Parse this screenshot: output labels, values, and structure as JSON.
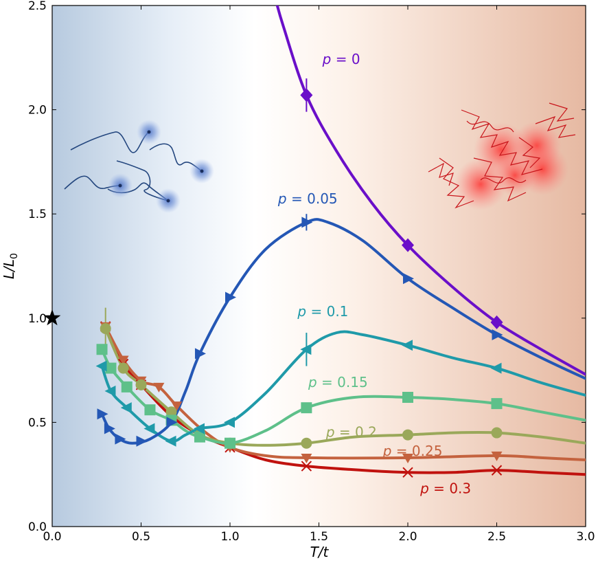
{
  "chart_data": {
    "type": "line",
    "xlabel": "T/t",
    "ylabel": "L/L0",
    "ylabel_main": "L/L",
    "ylabel_sub": "0",
    "xlim": [
      0,
      3
    ],
    "ylim": [
      0,
      2.5
    ],
    "xticks": [
      "0.0",
      "0.5",
      "1.0",
      "1.5",
      "2.0",
      "2.5",
      "3.0"
    ],
    "yticks": [
      "0.0",
      "0.5",
      "1.0",
      "1.5",
      "2.0",
      "2.5"
    ],
    "grid": false,
    "reference_point": {
      "x": 0.0,
      "y": 1.0,
      "marker": "star",
      "color": "#000000"
    },
    "background": {
      "cold_color": "#b7cadf",
      "hot_color": "#e6b9a2"
    },
    "series": [
      {
        "name": "p = 0",
        "label_italic": "p",
        "label_value": "0",
        "color": "#6a0fc9",
        "marker": "diamond",
        "label_at": [
          1.52,
          2.22
        ],
        "points": [
          [
            1.43,
            2.07
          ],
          [
            2.0,
            1.35
          ],
          [
            2.5,
            0.98
          ]
        ],
        "errorbars": [
          [
            1.43,
            2.07,
            0.08
          ]
        ],
        "curve": [
          [
            1.25,
            2.55
          ],
          [
            1.3,
            2.4
          ],
          [
            1.43,
            2.07
          ],
          [
            1.6,
            1.8
          ],
          [
            1.8,
            1.55
          ],
          [
            2.0,
            1.35
          ],
          [
            2.25,
            1.15
          ],
          [
            2.5,
            0.98
          ],
          [
            2.75,
            0.85
          ],
          [
            3.0,
            0.73
          ]
        ]
      },
      {
        "name": "p = 0.05",
        "label_italic": "p",
        "label_value": "0.05",
        "color": "#2457b5",
        "marker": "triangle-right",
        "label_at": [
          1.27,
          1.55
        ],
        "points": [
          [
            0.28,
            0.54
          ],
          [
            0.32,
            0.47
          ],
          [
            0.38,
            0.42
          ],
          [
            0.5,
            0.41
          ],
          [
            0.67,
            0.5
          ],
          [
            0.83,
            0.83
          ],
          [
            1.0,
            1.1
          ],
          [
            1.43,
            1.46
          ],
          [
            2.0,
            1.19
          ],
          [
            2.5,
            0.92
          ]
        ],
        "errorbars": [
          [
            1.43,
            1.46,
            0.04
          ]
        ],
        "curve": [
          [
            0.28,
            0.54
          ],
          [
            0.32,
            0.47
          ],
          [
            0.38,
            0.42
          ],
          [
            0.45,
            0.4
          ],
          [
            0.55,
            0.42
          ],
          [
            0.67,
            0.5
          ],
          [
            0.75,
            0.65
          ],
          [
            0.83,
            0.83
          ],
          [
            1.0,
            1.1
          ],
          [
            1.2,
            1.33
          ],
          [
            1.43,
            1.46
          ],
          [
            1.55,
            1.46
          ],
          [
            1.75,
            1.37
          ],
          [
            2.0,
            1.19
          ],
          [
            2.25,
            1.05
          ],
          [
            2.5,
            0.92
          ],
          [
            2.75,
            0.81
          ],
          [
            3.0,
            0.71
          ]
        ]
      },
      {
        "name": "p = 0.1",
        "label_italic": "p",
        "label_value": "0.1",
        "color": "#1f9aa9",
        "marker": "triangle-left",
        "label_at": [
          1.38,
          1.01
        ],
        "points": [
          [
            0.28,
            0.77
          ],
          [
            0.33,
            0.65
          ],
          [
            0.42,
            0.57
          ],
          [
            0.55,
            0.47
          ],
          [
            0.67,
            0.41
          ],
          [
            0.83,
            0.47
          ],
          [
            1.0,
            0.5
          ],
          [
            1.43,
            0.85
          ],
          [
            2.0,
            0.87
          ],
          [
            2.5,
            0.76
          ]
        ],
        "errorbars": [
          [
            1.43,
            0.85,
            0.08
          ]
        ],
        "curve": [
          [
            0.28,
            0.77
          ],
          [
            0.33,
            0.65
          ],
          [
            0.42,
            0.57
          ],
          [
            0.55,
            0.47
          ],
          [
            0.67,
            0.41
          ],
          [
            0.75,
            0.44
          ],
          [
            0.83,
            0.47
          ],
          [
            1.0,
            0.5
          ],
          [
            1.2,
            0.64
          ],
          [
            1.43,
            0.85
          ],
          [
            1.6,
            0.93
          ],
          [
            1.75,
            0.92
          ],
          [
            2.0,
            0.87
          ],
          [
            2.25,
            0.81
          ],
          [
            2.5,
            0.76
          ],
          [
            2.75,
            0.69
          ],
          [
            3.0,
            0.63
          ]
        ]
      },
      {
        "name": "p = 0.15",
        "label_italic": "p",
        "label_value": "0.15",
        "color": "#5ec08a",
        "marker": "square",
        "label_at": [
          1.44,
          0.67
        ],
        "points": [
          [
            0.28,
            0.85
          ],
          [
            0.33,
            0.76
          ],
          [
            0.42,
            0.67
          ],
          [
            0.55,
            0.56
          ],
          [
            0.67,
            0.51
          ],
          [
            0.83,
            0.43
          ],
          [
            1.0,
            0.4
          ],
          [
            1.43,
            0.57
          ],
          [
            2.0,
            0.62
          ],
          [
            2.5,
            0.59
          ]
        ],
        "errorbars": [],
        "curve": [
          [
            0.28,
            0.85
          ],
          [
            0.33,
            0.76
          ],
          [
            0.42,
            0.67
          ],
          [
            0.55,
            0.56
          ],
          [
            0.67,
            0.51
          ],
          [
            0.75,
            0.46
          ],
          [
            0.83,
            0.43
          ],
          [
            1.0,
            0.4
          ],
          [
            1.2,
            0.46
          ],
          [
            1.43,
            0.57
          ],
          [
            1.7,
            0.62
          ],
          [
            2.0,
            0.62
          ],
          [
            2.25,
            0.61
          ],
          [
            2.5,
            0.59
          ],
          [
            2.75,
            0.55
          ],
          [
            3.0,
            0.51
          ]
        ]
      },
      {
        "name": "p = 0.2",
        "label_italic": "p",
        "label_value": "0.2",
        "color": "#9aa85a",
        "marker": "circle",
        "label_at": [
          1.54,
          0.43
        ],
        "points": [
          [
            0.3,
            0.95
          ],
          [
            0.4,
            0.76
          ],
          [
            0.5,
            0.68
          ],
          [
            0.67,
            0.55
          ],
          [
            0.83,
            0.44
          ],
          [
            1.0,
            0.4
          ],
          [
            1.43,
            0.4
          ],
          [
            2.0,
            0.44
          ],
          [
            2.5,
            0.45
          ]
        ],
        "errorbars": [
          [
            0.3,
            0.95,
            0.1
          ]
        ],
        "curve": [
          [
            0.3,
            0.95
          ],
          [
            0.4,
            0.76
          ],
          [
            0.5,
            0.68
          ],
          [
            0.67,
            0.55
          ],
          [
            0.83,
            0.44
          ],
          [
            1.0,
            0.4
          ],
          [
            1.2,
            0.39
          ],
          [
            1.43,
            0.4
          ],
          [
            1.7,
            0.43
          ],
          [
            2.0,
            0.44
          ],
          [
            2.25,
            0.45
          ],
          [
            2.5,
            0.45
          ],
          [
            2.75,
            0.43
          ],
          [
            3.0,
            0.4
          ]
        ]
      },
      {
        "name": "p = 0.25",
        "label_italic": "p",
        "label_value": "0.25",
        "color": "#c4623e",
        "marker": "triangle-down",
        "label_at": [
          1.86,
          0.34
        ],
        "points": [
          [
            0.3,
            0.96
          ],
          [
            0.4,
            0.8
          ],
          [
            0.5,
            0.7
          ],
          [
            0.6,
            0.67
          ],
          [
            0.7,
            0.58
          ],
          [
            1.0,
            0.38
          ],
          [
            1.43,
            0.33
          ],
          [
            2.0,
            0.33
          ],
          [
            2.5,
            0.34
          ]
        ],
        "errorbars": [],
        "curve": [
          [
            0.3,
            0.96
          ],
          [
            0.4,
            0.8
          ],
          [
            0.5,
            0.7
          ],
          [
            0.6,
            0.67
          ],
          [
            0.7,
            0.58
          ],
          [
            0.85,
            0.46
          ],
          [
            1.0,
            0.38
          ],
          [
            1.2,
            0.34
          ],
          [
            1.43,
            0.33
          ],
          [
            2.0,
            0.33
          ],
          [
            2.5,
            0.34
          ],
          [
            2.75,
            0.33
          ],
          [
            3.0,
            0.32
          ]
        ]
      },
      {
        "name": "p = 0.3",
        "label_italic": "p",
        "label_value": "0.3",
        "color": "#c0120e",
        "marker": "x",
        "label_at": [
          2.07,
          0.16
        ],
        "points": [
          [
            0.3,
            0.96
          ],
          [
            0.4,
            0.78
          ],
          [
            0.5,
            0.68
          ],
          [
            0.67,
            0.53
          ],
          [
            1.0,
            0.38
          ],
          [
            1.43,
            0.29
          ],
          [
            2.0,
            0.26
          ],
          [
            2.5,
            0.27
          ]
        ],
        "errorbars": [],
        "curve": [
          [
            0.3,
            0.96
          ],
          [
            0.4,
            0.78
          ],
          [
            0.5,
            0.68
          ],
          [
            0.67,
            0.53
          ],
          [
            0.83,
            0.44
          ],
          [
            1.0,
            0.38
          ],
          [
            1.2,
            0.32
          ],
          [
            1.43,
            0.29
          ],
          [
            1.75,
            0.27
          ],
          [
            2.0,
            0.26
          ],
          [
            2.25,
            0.26
          ],
          [
            2.5,
            0.27
          ],
          [
            2.75,
            0.26
          ],
          [
            3.0,
            0.25
          ]
        ]
      }
    ]
  }
}
